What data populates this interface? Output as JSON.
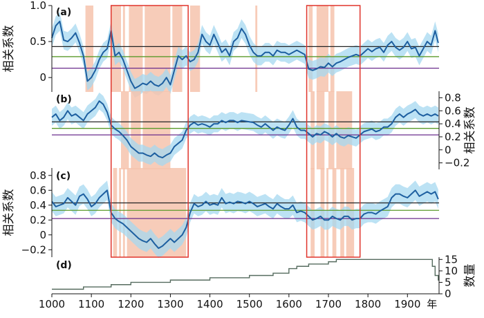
{
  "chart_data": {
    "type": "line",
    "x_axis": {
      "min": 1000,
      "max": 1980,
      "ticks": [
        1000,
        1100,
        1200,
        1300,
        1400,
        1500,
        1600,
        1700,
        1800,
        1900
      ],
      "tick_labels": [
        "1000",
        "1100",
        "1200",
        "1300",
        "1400",
        "1500",
        "1600",
        "1700",
        "1800",
        "1900"
      ],
      "unit_label": "年"
    },
    "highlight_windows": [
      [
        1150,
        1345
      ],
      [
        1645,
        1780
      ]
    ],
    "panels": [
      {
        "label": "(a)",
        "ylabel": "相关系数",
        "ylim": [
          -0.2,
          1.0
        ],
        "y_ticks": [
          0,
          0.5,
          1.0
        ],
        "y_tick_labels": [
          "0",
          "0.5",
          "1.0"
        ],
        "y_axis_side": "left",
        "reference_lines": [
          {
            "value": 0.43,
            "color": "#222222"
          },
          {
            "value": 0.29,
            "color": "#5a9a2a"
          },
          {
            "value": 0.13,
            "color": "#6a2c8c"
          }
        ],
        "shaded_periods": [
          [
            1085,
            1105
          ],
          [
            1150,
            1175
          ],
          [
            1180,
            1185
          ],
          [
            1195,
            1230
          ],
          [
            1235,
            1300
          ],
          [
            1305,
            1330
          ],
          [
            1350,
            1375
          ],
          [
            1515,
            1520
          ],
          [
            1650,
            1660
          ],
          [
            1670,
            1700
          ],
          [
            1705,
            1715
          ]
        ],
        "series": {
          "x": [
            1000,
            1010,
            1020,
            1030,
            1040,
            1050,
            1060,
            1070,
            1080,
            1090,
            1100,
            1110,
            1120,
            1130,
            1140,
            1150,
            1160,
            1170,
            1180,
            1190,
            1200,
            1210,
            1220,
            1230,
            1240,
            1250,
            1260,
            1270,
            1280,
            1290,
            1300,
            1310,
            1320,
            1330,
            1340,
            1350,
            1360,
            1370,
            1380,
            1390,
            1400,
            1410,
            1420,
            1430,
            1440,
            1450,
            1460,
            1470,
            1480,
            1490,
            1500,
            1510,
            1520,
            1530,
            1540,
            1550,
            1560,
            1570,
            1580,
            1590,
            1600,
            1610,
            1620,
            1630,
            1640,
            1650,
            1660,
            1670,
            1680,
            1690,
            1700,
            1710,
            1720,
            1730,
            1740,
            1750,
            1760,
            1770,
            1780,
            1790,
            1800,
            1810,
            1820,
            1830,
            1840,
            1850,
            1860,
            1870,
            1880,
            1890,
            1900,
            1910,
            1920,
            1930,
            1940,
            1950,
            1960,
            1970,
            1978
          ],
          "values": [
            0.55,
            0.72,
            0.78,
            0.52,
            0.5,
            0.55,
            0.62,
            0.48,
            0.3,
            -0.05,
            0.0,
            0.1,
            0.25,
            0.35,
            0.4,
            0.65,
            0.3,
            0.35,
            0.25,
            0.1,
            -0.05,
            -0.15,
            -0.12,
            -0.08,
            -0.1,
            -0.05,
            -0.1,
            -0.12,
            -0.08,
            0.0,
            -0.1,
            0.1,
            0.3,
            0.25,
            0.3,
            0.22,
            0.25,
            0.35,
            0.6,
            0.5,
            0.45,
            0.6,
            0.48,
            0.35,
            0.4,
            0.3,
            0.5,
            0.55,
            0.68,
            0.6,
            0.45,
            0.35,
            0.3,
            0.3,
            0.35,
            0.35,
            0.3,
            0.38,
            0.35,
            0.35,
            0.32,
            0.35,
            0.38,
            0.35,
            0.32,
            0.12,
            0.1,
            0.12,
            0.15,
            0.14,
            0.2,
            0.15,
            0.2,
            0.22,
            0.25,
            0.28,
            0.3,
            0.32,
            0.3,
            0.35,
            0.4,
            0.36,
            0.4,
            0.42,
            0.35,
            0.45,
            0.5,
            0.42,
            0.38,
            0.42,
            0.5,
            0.4,
            0.42,
            0.3,
            0.4,
            0.5,
            0.45,
            0.65,
            0.48
          ],
          "uncertainty": 0.13
        }
      },
      {
        "label": "(b)",
        "ylabel": "相关系数",
        "ylim": [
          -0.3,
          0.9
        ],
        "y_ticks": [
          -0.2,
          0,
          0.2,
          0.4,
          0.6,
          0.8
        ],
        "y_tick_labels": [
          "−0.2",
          "0",
          "0.2",
          "0.4",
          "0.6",
          "0.8"
        ],
        "y_axis_side": "right",
        "reference_lines": [
          {
            "value": 0.43,
            "color": "#222222"
          },
          {
            "value": 0.33,
            "color": "#5a9a2a"
          },
          {
            "value": 0.23,
            "color": "#6a2c8c"
          }
        ],
        "shaded_periods": [
          [
            1175,
            1195
          ],
          [
            1200,
            1225
          ],
          [
            1230,
            1300
          ],
          [
            1655,
            1665
          ],
          [
            1670,
            1690
          ],
          [
            1700,
            1715
          ],
          [
            1720,
            1760
          ]
        ],
        "series": {
          "x": [
            1000,
            1010,
            1020,
            1030,
            1040,
            1050,
            1060,
            1070,
            1080,
            1090,
            1100,
            1110,
            1120,
            1130,
            1140,
            1150,
            1160,
            1170,
            1180,
            1190,
            1200,
            1210,
            1220,
            1230,
            1240,
            1250,
            1260,
            1270,
            1280,
            1290,
            1300,
            1310,
            1320,
            1330,
            1340,
            1350,
            1360,
            1370,
            1380,
            1390,
            1400,
            1410,
            1420,
            1430,
            1440,
            1450,
            1460,
            1470,
            1480,
            1490,
            1500,
            1510,
            1520,
            1530,
            1540,
            1550,
            1560,
            1570,
            1580,
            1590,
            1600,
            1610,
            1620,
            1630,
            1640,
            1650,
            1660,
            1670,
            1680,
            1690,
            1700,
            1710,
            1720,
            1730,
            1740,
            1750,
            1760,
            1770,
            1780,
            1790,
            1800,
            1810,
            1820,
            1830,
            1840,
            1850,
            1860,
            1870,
            1880,
            1890,
            1900,
            1910,
            1920,
            1930,
            1940,
            1950,
            1960,
            1970,
            1978
          ],
          "values": [
            0.5,
            0.55,
            0.45,
            0.5,
            0.6,
            0.52,
            0.55,
            0.5,
            0.45,
            0.55,
            0.6,
            0.65,
            0.75,
            0.7,
            0.58,
            0.38,
            0.32,
            0.28,
            0.22,
            0.15,
            0.05,
            0.0,
            -0.05,
            -0.05,
            -0.08,
            -0.1,
            -0.05,
            -0.1,
            -0.12,
            -0.08,
            -0.05,
            0.05,
            0.1,
            0.15,
            0.3,
            0.38,
            0.42,
            0.38,
            0.4,
            0.38,
            0.35,
            0.4,
            0.4,
            0.45,
            0.42,
            0.45,
            0.45,
            0.42,
            0.45,
            0.44,
            0.43,
            0.42,
            0.38,
            0.35,
            0.4,
            0.35,
            0.3,
            0.35,
            0.32,
            0.3,
            0.38,
            0.48,
            0.35,
            0.3,
            0.3,
            0.25,
            0.2,
            0.25,
            0.23,
            0.28,
            0.25,
            0.2,
            0.25,
            0.2,
            0.18,
            0.22,
            0.2,
            0.18,
            0.23,
            0.28,
            0.3,
            0.32,
            0.28,
            0.3,
            0.35,
            0.35,
            0.4,
            0.5,
            0.55,
            0.5,
            0.55,
            0.58,
            0.62,
            0.55,
            0.52,
            0.55,
            0.52,
            0.55,
            0.52
          ],
          "uncertainty": 0.13
        }
      },
      {
        "label": "(c)",
        "ylabel": "相关系数",
        "ylim": [
          -0.3,
          0.9
        ],
        "y_ticks": [
          -0.2,
          0,
          0.2,
          0.4,
          0.6,
          0.8
        ],
        "y_tick_labels": [
          "−0.2",
          "0",
          "0.2",
          "0.4",
          "0.6",
          "0.8"
        ],
        "y_axis_side": "left",
        "reference_lines": [
          {
            "value": 0.43,
            "color": "#222222"
          },
          {
            "value": 0.33,
            "color": "#5a9a2a"
          },
          {
            "value": 0.22,
            "color": "#6a2c8c"
          }
        ],
        "shaded_periods": [
          [
            1155,
            1165
          ],
          [
            1170,
            1175
          ],
          [
            1180,
            1185
          ],
          [
            1190,
            1340
          ],
          [
            1655,
            1665
          ],
          [
            1680,
            1690
          ],
          [
            1695,
            1700
          ],
          [
            1710,
            1720
          ],
          [
            1730,
            1740
          ],
          [
            1745,
            1765
          ]
        ],
        "series": {
          "x": [
            1000,
            1010,
            1020,
            1030,
            1040,
            1050,
            1060,
            1070,
            1080,
            1090,
            1100,
            1110,
            1120,
            1130,
            1140,
            1150,
            1160,
            1170,
            1180,
            1190,
            1200,
            1210,
            1220,
            1230,
            1240,
            1250,
            1260,
            1270,
            1280,
            1290,
            1300,
            1310,
            1320,
            1330,
            1340,
            1350,
            1360,
            1370,
            1380,
            1390,
            1400,
            1410,
            1420,
            1430,
            1440,
            1450,
            1460,
            1470,
            1480,
            1490,
            1500,
            1510,
            1520,
            1530,
            1540,
            1550,
            1560,
            1570,
            1580,
            1590,
            1600,
            1610,
            1620,
            1630,
            1640,
            1650,
            1660,
            1670,
            1680,
            1690,
            1700,
            1710,
            1720,
            1730,
            1740,
            1750,
            1760,
            1770,
            1780,
            1790,
            1800,
            1810,
            1820,
            1830,
            1840,
            1850,
            1860,
            1870,
            1880,
            1890,
            1900,
            1910,
            1920,
            1930,
            1940,
            1950,
            1960,
            1970,
            1978
          ],
          "values": [
            0.45,
            0.38,
            0.4,
            0.42,
            0.5,
            0.45,
            0.4,
            0.52,
            0.55,
            0.48,
            0.38,
            0.42,
            0.5,
            0.55,
            0.6,
            0.3,
            0.22,
            0.18,
            0.15,
            0.1,
            0.05,
            0.0,
            -0.05,
            -0.08,
            -0.1,
            -0.05,
            -0.12,
            -0.18,
            -0.15,
            -0.1,
            -0.05,
            -0.1,
            -0.05,
            0.0,
            0.1,
            0.3,
            0.42,
            0.38,
            0.4,
            0.45,
            0.4,
            0.42,
            0.4,
            0.5,
            0.42,
            0.44,
            0.42,
            0.45,
            0.44,
            0.42,
            0.45,
            0.42,
            0.38,
            0.4,
            0.42,
            0.38,
            0.35,
            0.42,
            0.38,
            0.35,
            0.35,
            0.4,
            0.3,
            0.32,
            0.3,
            0.25,
            0.2,
            0.22,
            0.25,
            0.2,
            0.2,
            0.25,
            0.22,
            0.2,
            0.25,
            0.25,
            0.2,
            0.22,
            0.22,
            0.28,
            0.3,
            0.3,
            0.28,
            0.32,
            0.35,
            0.38,
            0.5,
            0.55,
            0.55,
            0.52,
            0.5,
            0.55,
            0.6,
            0.52,
            0.55,
            0.58,
            0.55,
            0.58,
            0.48
          ],
          "uncertainty": 0.13
        }
      },
      {
        "label": "(d)",
        "ylabel": "数量",
        "ylim": [
          0,
          16
        ],
        "y_ticks": [
          0,
          5,
          10,
          15
        ],
        "y_tick_labels": [
          "0",
          "5",
          "10",
          "15"
        ],
        "y_axis_side": "right",
        "series": {
          "type": "step",
          "x": [
            1000,
            1080,
            1150,
            1200,
            1300,
            1400,
            1500,
            1560,
            1600,
            1620,
            1650,
            1700,
            1720,
            1958,
            1963,
            1970,
            1978
          ],
          "values": [
            2,
            3,
            4,
            5,
            6,
            7,
            8,
            9,
            11,
            12,
            13,
            14,
            15,
            15,
            12,
            8,
            6
          ]
        }
      }
    ]
  }
}
